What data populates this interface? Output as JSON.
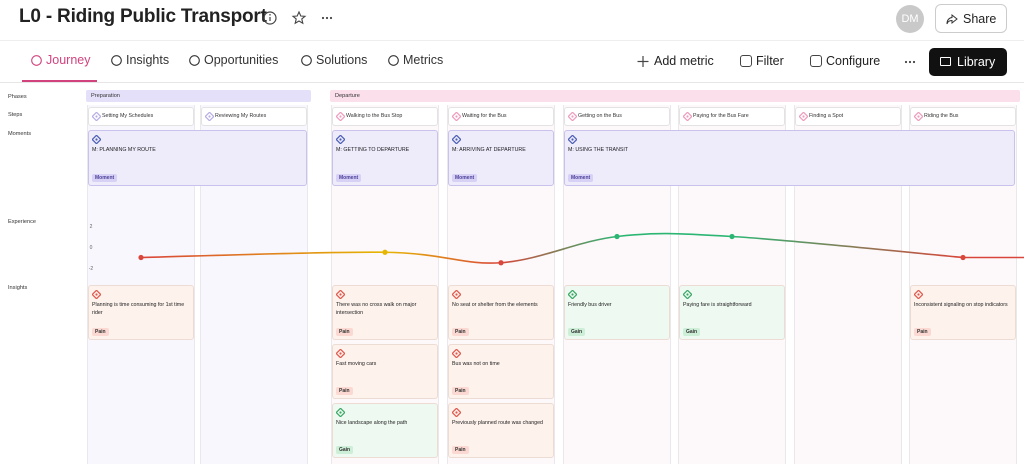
{
  "header": {
    "title": "L0 - Riding Public Transport",
    "avatar": "DM",
    "share": "Share"
  },
  "tabs": [
    {
      "label": "Journey",
      "active": true
    },
    {
      "label": "Insights",
      "active": false
    },
    {
      "label": "Opportunities",
      "active": false
    },
    {
      "label": "Solutions",
      "active": false
    },
    {
      "label": "Metrics",
      "active": false
    }
  ],
  "actions": [
    "Add metric",
    "Filter",
    "Configure",
    "Library"
  ],
  "row_labels": [
    "Phases",
    "Steps",
    "Moments",
    "Experience",
    "Insights"
  ],
  "phases": [
    {
      "name": "Preparation",
      "color": "#e4e0f9",
      "lane": "#f8f7fd",
      "icon": "#b7aee6",
      "steps": [
        "Setting My Schedules",
        "Reviewing My Routes"
      ]
    },
    {
      "name": "Departure",
      "color": "#fbdfeb",
      "lane": "#fdf8f9",
      "icon": "#ee9bbd",
      "steps": [
        "Walking to the Bus Stop",
        "Waiting for the Bus",
        "Getting on the Bus",
        "Paying for the Bus Fare",
        "Finding a Spot",
        "Riding the Bus"
      ]
    }
  ],
  "moments": [
    {
      "label": "M: PLANNING MY ROUTE",
      "tag": "Moment"
    },
    {
      "label": "M: GETTING TO DEPARTURE",
      "tag": "Moment"
    },
    {
      "label": "M: ARRIVING AT DEPARTURE",
      "tag": "Moment"
    },
    {
      "label": "M: USING THE TRANSIT",
      "tag": "Moment"
    }
  ],
  "experience": {
    "ylim": [
      -2,
      2
    ],
    "yticks": [
      2,
      0,
      -2
    ],
    "values": [
      -1,
      null,
      -0.5,
      -1.5,
      1,
      1,
      null,
      -1
    ]
  },
  "insights": [
    [
      {
        "text": "Planning is time consuming for 1st time rider",
        "tag": "Pain",
        "color": "#fdf2ec",
        "tag_color": "#fbd9d2"
      }
    ],
    [],
    [
      {
        "text": "There was no cross walk on major intersection",
        "tag": "Pain",
        "color": "#fdf2ec",
        "tag_color": "#fbd9d2"
      },
      {
        "text": "Fast moving cars",
        "tag": "Pain",
        "color": "#fdf2ec",
        "tag_color": "#fbd9d2"
      },
      {
        "text": "Nice landscape along the path",
        "tag": "Gain",
        "color": "#eef9f1",
        "tag_color": "#cdeed7"
      }
    ],
    [
      {
        "text": "No seat or shelter from the elements",
        "tag": "Pain",
        "color": "#fdf2ec",
        "tag_color": "#fbd9d2"
      },
      {
        "text": "Bus was not on time",
        "tag": "Pain",
        "color": "#fdf2ec",
        "tag_color": "#fbd9d2"
      },
      {
        "text": "Previously planned route was changed",
        "tag": "Pain",
        "color": "#fdf2ec",
        "tag_color": "#fbd9d2"
      }
    ],
    [
      {
        "text": "Friendly bus driver",
        "tag": "Gain",
        "color": "#eef9f1",
        "tag_color": "#cdeed7"
      }
    ],
    [
      {
        "text": "Paying fare is straightforward",
        "tag": "Gain",
        "color": "#eef9f1",
        "tag_color": "#cdeed7"
      }
    ],
    [],
    [
      {
        "text": "Inconsistent signaling on stop indicators",
        "tag": "Pain",
        "color": "#fdf2ec",
        "tag_color": "#fbd9d2"
      }
    ]
  ]
}
